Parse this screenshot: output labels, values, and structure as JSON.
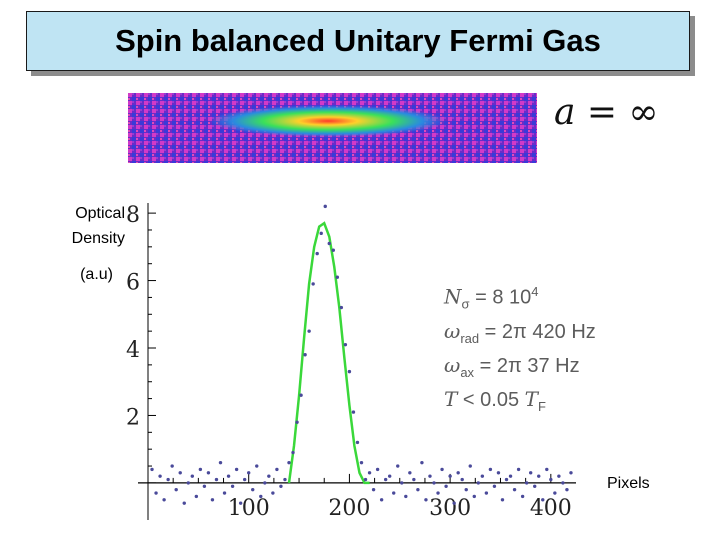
{
  "title": "Spin balanced Unitary Fermi Gas",
  "scattering_length": {
    "symbol": "a",
    "equals": "=",
    "value": "∞"
  },
  "y_axis_label": {
    "line1": "Optical",
    "line2": "Density",
    "line3": "(a.u)"
  },
  "x_axis_label": "Pixels",
  "parameters": {
    "n_symbol": "N",
    "n_sub": "σ",
    "n_value": "= 8 10",
    "n_exp": "4",
    "wrad_symbol": "ω",
    "wrad_sub": "rad",
    "wrad_value": "= 2π 420 Hz",
    "wax_symbol": "ω",
    "wax_sub": "ax",
    "wax_value": "= 2π 37  Hz",
    "t_symbol": "T",
    "t_value": "< 0.05",
    "tf_symbol": "T",
    "tf_sub": "F"
  },
  "colors": {
    "title_bg": "#bfe4f3",
    "data_points": "#4a4a9a",
    "fit_line": "#3ad83a",
    "axis": "#000000"
  },
  "chart_data": {
    "type": "scatter",
    "xlabel": "Pixels",
    "ylabel": "Optical Density (a.u)",
    "x_ticks": [
      100,
      200,
      300,
      400
    ],
    "y_ticks": [
      2,
      4,
      6,
      8
    ],
    "xlim": [
      0,
      425
    ],
    "ylim": [
      -1.1,
      8.3
    ],
    "series": [
      {
        "kind": "points",
        "x": [
          4,
          8,
          12,
          16,
          20,
          24,
          28,
          32,
          36,
          40,
          44,
          48,
          52,
          56,
          60,
          64,
          68,
          72,
          76,
          80,
          84,
          88,
          92,
          96,
          100,
          104,
          108,
          112,
          116,
          120,
          124,
          128,
          132,
          136,
          140,
          144,
          148,
          152,
          156,
          160,
          164,
          168,
          172,
          176,
          180,
          184,
          188,
          192,
          196,
          200,
          204,
          208,
          212,
          216,
          220,
          224,
          228,
          232,
          236,
          240,
          244,
          248,
          252,
          256,
          260,
          264,
          268,
          272,
          276,
          280,
          284,
          288,
          292,
          296,
          300,
          304,
          308,
          312,
          316,
          320,
          324,
          328,
          332,
          336,
          340,
          344,
          348,
          352,
          356,
          360,
          364,
          368,
          372,
          376,
          380,
          384,
          388,
          392,
          396,
          400,
          404,
          408,
          412,
          416,
          420
        ],
        "y": [
          0.4,
          -0.3,
          0.2,
          -0.5,
          0.1,
          0.5,
          -0.2,
          0.3,
          -0.6,
          0.0,
          0.2,
          -0.4,
          0.4,
          -0.1,
          0.3,
          -0.5,
          0.1,
          0.6,
          -0.3,
          0.2,
          -0.1,
          0.4,
          -0.6,
          0.1,
          0.3,
          -0.2,
          0.5,
          -0.4,
          0.0,
          0.2,
          -0.3,
          0.4,
          -0.1,
          0.1,
          0.6,
          0.9,
          1.8,
          2.6,
          3.8,
          4.5,
          5.9,
          6.8,
          7.4,
          8.2,
          7.1,
          6.9,
          6.1,
          5.2,
          4.1,
          3.3,
          2.1,
          1.2,
          0.6,
          0.1,
          0.3,
          -0.2,
          0.4,
          -0.5,
          0.1,
          0.2,
          -0.3,
          0.5,
          0.0,
          -0.4,
          0.3,
          0.1,
          -0.2,
          0.6,
          -0.5,
          0.2,
          0.0,
          -0.3,
          0.4,
          -0.1,
          0.2,
          -0.6,
          0.3,
          0.1,
          -0.2,
          0.5,
          -0.4,
          0.0,
          0.2,
          -0.3,
          0.4,
          -0.1,
          0.3,
          -0.5,
          0.1,
          0.2,
          -0.2,
          0.4,
          -0.4,
          0.0,
          0.3,
          -0.1,
          0.2,
          -0.5,
          0.4,
          0.1,
          -0.3,
          0.2,
          0.0,
          -0.2,
          0.3
        ]
      },
      {
        "kind": "fit",
        "x": [
          140,
          145,
          150,
          155,
          160,
          165,
          170,
          175,
          180,
          185,
          190,
          195,
          200,
          205,
          210,
          215,
          220
        ],
        "y": [
          0.0,
          1.1,
          2.6,
          4.3,
          5.9,
          7.0,
          7.6,
          7.7,
          7.3,
          6.4,
          5.2,
          3.7,
          2.3,
          1.1,
          0.3,
          0.0,
          0.0
        ]
      }
    ],
    "grid": false,
    "legend": "none"
  }
}
